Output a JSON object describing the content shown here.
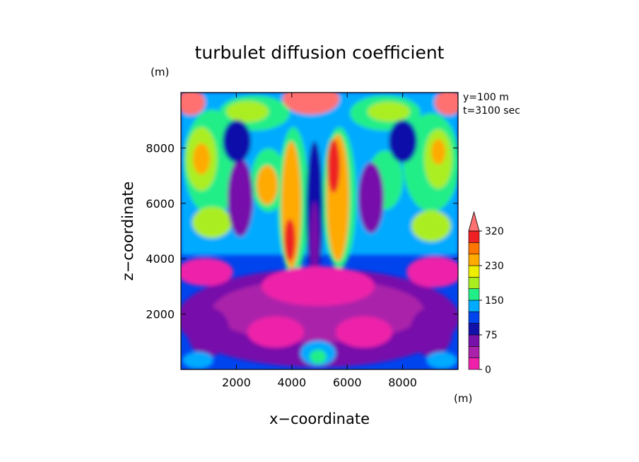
{
  "chart_data": {
    "type": "heatmap",
    "title": "turbulet diffusion coefficient",
    "xlabel": "x−coordinate",
    "ylabel": "z−coordinate",
    "x_unit": "(m)",
    "y_unit": "(m)",
    "annotations": [
      "y=100 m",
      "t=3100 sec"
    ],
    "xlim": [
      0,
      10000
    ],
    "ylim": [
      0,
      10000
    ],
    "x_ticks": [
      2000,
      4000,
      6000,
      8000
    ],
    "y_ticks": [
      2000,
      4000,
      6000,
      8000
    ],
    "x_tick_labels": [
      "2000",
      "4000",
      "6000",
      "8000"
    ],
    "y_tick_labels": [
      "2000",
      "4000",
      "6000",
      "8000"
    ],
    "colorbar": {
      "levels": [
        0,
        25,
        50,
        75,
        100,
        125,
        150,
        175,
        200,
        230,
        260,
        290,
        320,
        340
      ],
      "colors": [
        "#ee22aa",
        "#aa22aa",
        "#7711aa",
        "#1111aa",
        "#0044ee",
        "#00aaff",
        "#22ee88",
        "#aaee22",
        "#eeee00",
        "#ffaa00",
        "#ff7700",
        "#ee2222",
        "#ff7070"
      ],
      "tick_values": [
        0,
        75,
        150,
        230,
        320
      ],
      "tick_labels": [
        "0",
        "75",
        "150",
        "230",
        "320"
      ],
      "extend": "max"
    }
  }
}
